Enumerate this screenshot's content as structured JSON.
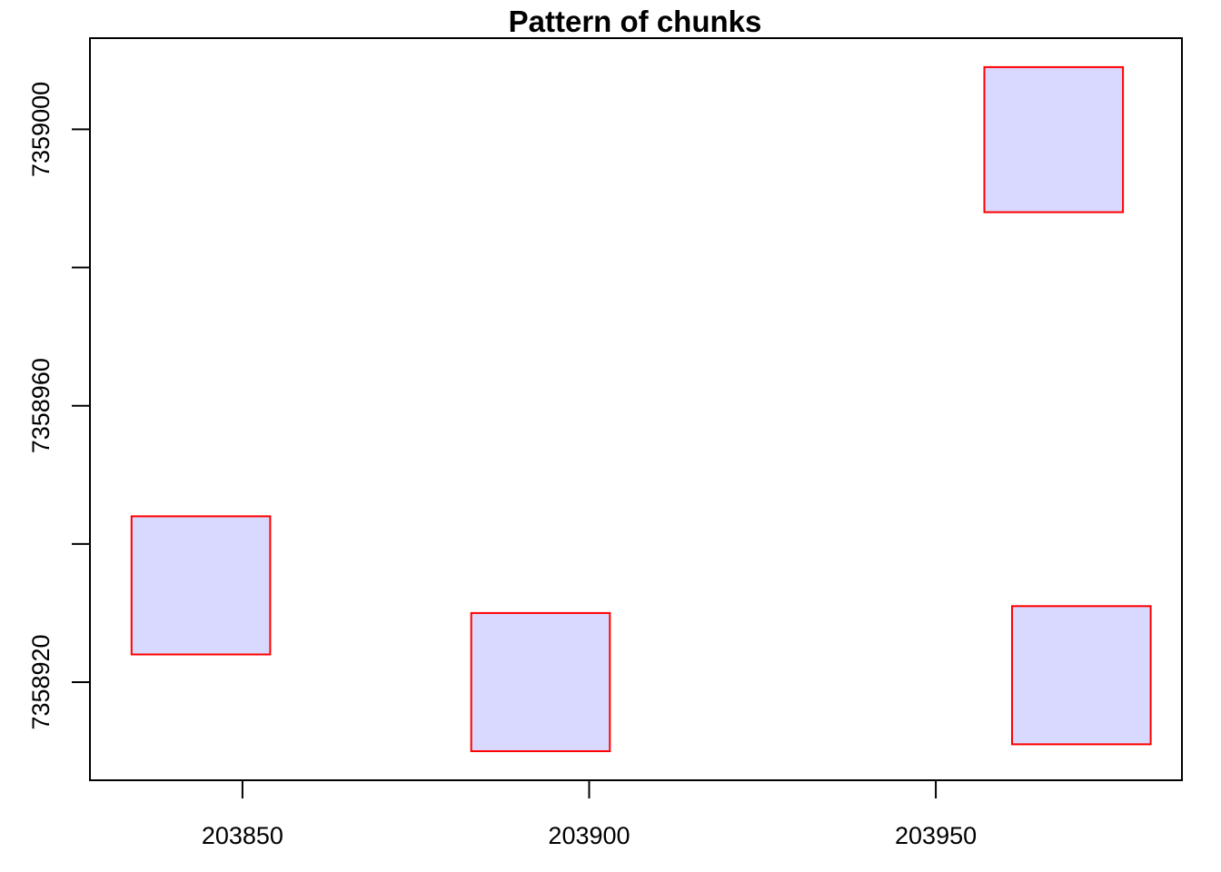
{
  "chart_data": {
    "type": "rect",
    "title": "Pattern of chunks",
    "xlabel": "",
    "ylabel": "",
    "xlim": [
      203828,
      203985.5
    ],
    "ylim": [
      7358905.8,
      7359013.2
    ],
    "x_ticks": [
      203850,
      203900,
      203950
    ],
    "x_tick_labels": [
      "203850",
      "203900",
      "203950"
    ],
    "y_ticks": [
      7358920,
      7358940,
      7358960,
      7358980,
      7359000
    ],
    "y_tick_labels": [
      "7358920",
      "",
      "7358960",
      "",
      "7359000"
    ],
    "grid": false,
    "legend": "none",
    "fill_color": "#d9d9ff",
    "stroke_color": "#ff0000",
    "rectangles": [
      {
        "xmin": 203834,
        "xmax": 203854,
        "ymin": 7358924,
        "ymax": 7358944
      },
      {
        "xmin": 203883,
        "xmax": 203903,
        "ymin": 7358910,
        "ymax": 7358930
      },
      {
        "xmin": 203957,
        "xmax": 203977,
        "ymin": 7358988,
        "ymax": 7359009
      },
      {
        "xmin": 203961,
        "xmax": 203981,
        "ymin": 7358911,
        "ymax": 7358931
      }
    ]
  }
}
